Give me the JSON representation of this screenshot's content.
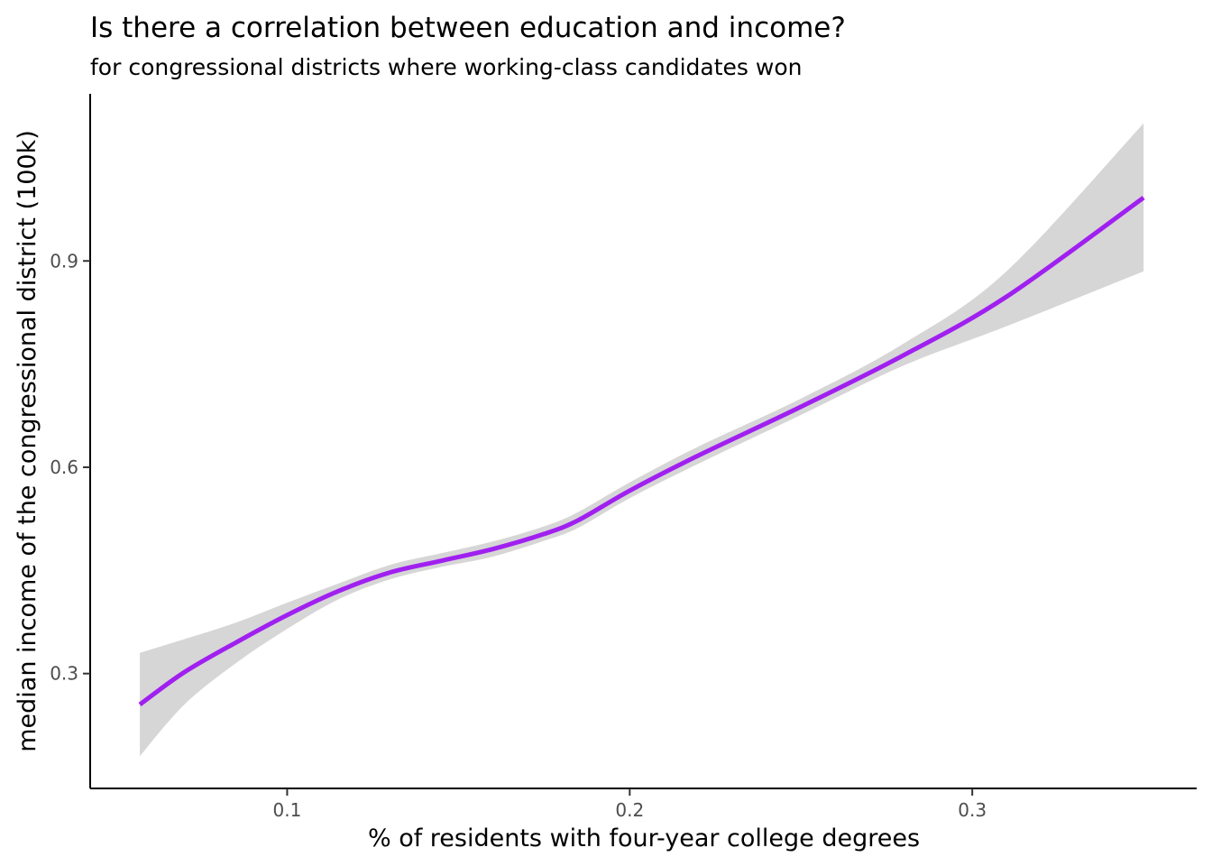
{
  "chart_data": {
    "type": "line",
    "title": "Is there a correlation between education and income?",
    "subtitle": "for congressional districts where working-class candidates won",
    "xlabel": "% of residents with four-year college degrees",
    "ylabel": "median income of the congressional district (100k)",
    "xlim": [
      0.0425,
      0.3655
    ],
    "ylim": [
      0.133,
      1.143
    ],
    "x_ticks": [
      0.1,
      0.2,
      0.3
    ],
    "x_tick_labels": [
      "0.1",
      "0.2",
      "0.3"
    ],
    "y_ticks": [
      0.3,
      0.6,
      0.9
    ],
    "y_tick_labels": [
      "0.3",
      "0.6",
      "0.9"
    ],
    "grid": false,
    "legend": "none",
    "line_color": "#a020f0",
    "band_color": "#d6d6d6",
    "series": [
      {
        "x": [
          0.057,
          0.07,
          0.085,
          0.1,
          0.115,
          0.13,
          0.145,
          0.16,
          0.175,
          0.185,
          0.2,
          0.22,
          0.25,
          0.28,
          0.31,
          0.35
        ],
        "y": [
          0.255,
          0.302,
          0.345,
          0.385,
          0.42,
          0.447,
          0.464,
          0.481,
          0.503,
          0.523,
          0.566,
          0.617,
          0.688,
          0.763,
          0.848,
          0.992
        ],
        "lower": [
          0.18,
          0.255,
          0.315,
          0.365,
          0.408,
          0.437,
          0.455,
          0.47,
          0.493,
          0.512,
          0.555,
          0.605,
          0.676,
          0.748,
          0.805,
          0.885
        ],
        "upper": [
          0.33,
          0.35,
          0.374,
          0.403,
          0.431,
          0.458,
          0.475,
          0.492,
          0.514,
          0.535,
          0.578,
          0.63,
          0.7,
          0.78,
          0.885,
          1.1
        ]
      }
    ]
  }
}
